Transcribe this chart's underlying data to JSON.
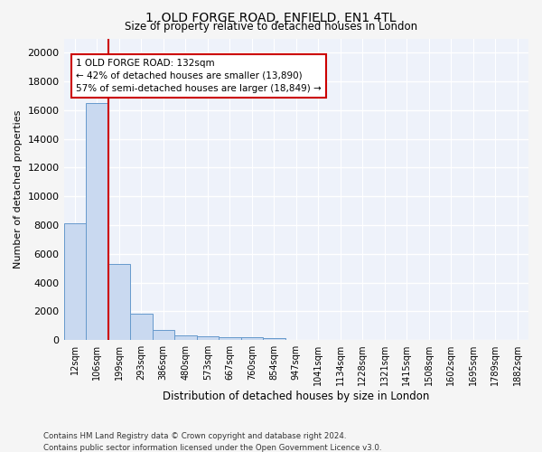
{
  "title": "1, OLD FORGE ROAD, ENFIELD, EN1 4TL",
  "subtitle": "Size of property relative to detached houses in London",
  "xlabel": "Distribution of detached houses by size in London",
  "ylabel": "Number of detached properties",
  "categories": [
    "12sqm",
    "106sqm",
    "199sqm",
    "293sqm",
    "386sqm",
    "480sqm",
    "573sqm",
    "667sqm",
    "760sqm",
    "854sqm",
    "947sqm",
    "1041sqm",
    "1134sqm",
    "1228sqm",
    "1321sqm",
    "1415sqm",
    "1508sqm",
    "1602sqm",
    "1695sqm",
    "1789sqm",
    "1882sqm"
  ],
  "bar_heights": [
    8100,
    16500,
    5300,
    1850,
    700,
    330,
    230,
    200,
    170,
    150,
    0,
    0,
    0,
    0,
    0,
    0,
    0,
    0,
    0,
    0,
    0
  ],
  "bar_color": "#c9d9f0",
  "bar_edge_color": "#6699cc",
  "background_color": "#eef2fa",
  "grid_color": "#ffffff",
  "annotation_line1": "1 OLD FORGE ROAD: 132sqm",
  "annotation_line2": "← 42% of detached houses are smaller (13,890)",
  "annotation_line3": "57% of semi-detached houses are larger (18,849) →",
  "annotation_box_color": "#ffffff",
  "annotation_box_edge": "#cc0000",
  "red_line_color": "#cc0000",
  "ylim": [
    0,
    21000
  ],
  "yticks": [
    0,
    2000,
    4000,
    6000,
    8000,
    10000,
    12000,
    14000,
    16000,
    18000,
    20000
  ],
  "footer_line1": "Contains HM Land Registry data © Crown copyright and database right 2024.",
  "footer_line2": "Contains public sector information licensed under the Open Government Licence v3.0."
}
